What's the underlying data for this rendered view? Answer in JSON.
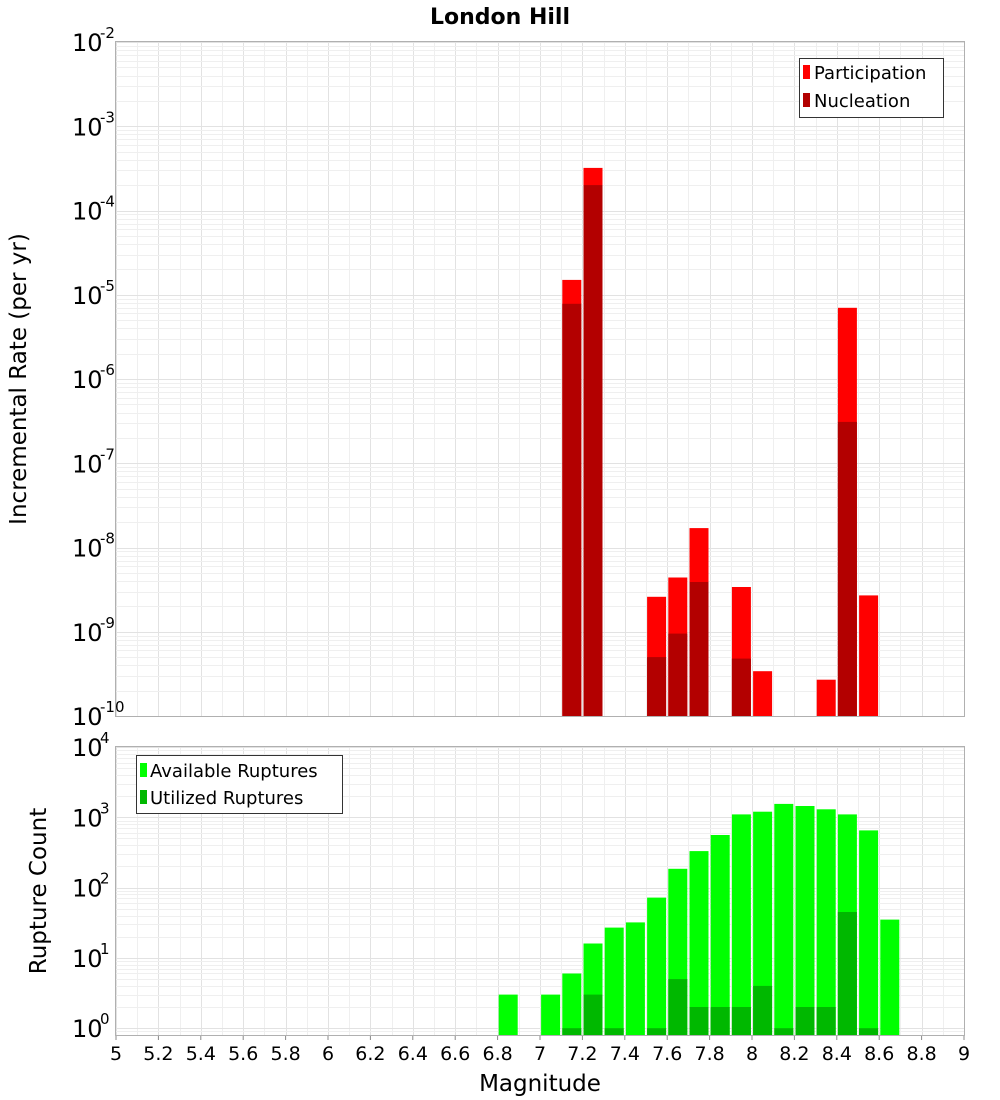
{
  "chart_data": [
    {
      "type": "bar",
      "title": "London Hill",
      "xlabel": "",
      "ylabel": "Incremental Rate (per yr)",
      "y_scale": "log",
      "ylim": [
        1e-10,
        0.01
      ],
      "xlim": [
        5,
        9
      ],
      "y_ticks": [
        {
          "base": "10",
          "exp": "-10"
        },
        {
          "base": "10",
          "exp": "-9"
        },
        {
          "base": "10",
          "exp": "-8"
        },
        {
          "base": "10",
          "exp": "-7"
        },
        {
          "base": "10",
          "exp": "-6"
        },
        {
          "base": "10",
          "exp": "-5"
        },
        {
          "base": "10",
          "exp": "-4"
        },
        {
          "base": "10",
          "exp": "-3"
        },
        {
          "base": "10",
          "exp": "-2"
        }
      ],
      "legend_position": "top-right",
      "series": [
        {
          "name": "Participation",
          "color": "#ff0000",
          "points": [
            {
              "x": 7.15,
              "y": 1.5e-05
            },
            {
              "x": 7.25,
              "y": 0.00032
            },
            {
              "x": 7.55,
              "y": 2.6e-09
            },
            {
              "x": 7.65,
              "y": 4.4e-09
            },
            {
              "x": 7.75,
              "y": 1.7e-08
            },
            {
              "x": 7.95,
              "y": 3.4e-09
            },
            {
              "x": 8.05,
              "y": 3.4e-10
            },
            {
              "x": 8.35,
              "y": 2.7e-10
            },
            {
              "x": 8.45,
              "y": 7e-06
            },
            {
              "x": 8.55,
              "y": 2.7e-09
            }
          ]
        },
        {
          "name": "Nucleation",
          "color": "#b30000",
          "points": [
            {
              "x": 7.15,
              "y": 7.8e-06
            },
            {
              "x": 7.25,
              "y": 0.0002
            },
            {
              "x": 7.55,
              "y": 5e-10
            },
            {
              "x": 7.65,
              "y": 9.5e-10
            },
            {
              "x": 7.75,
              "y": 3.9e-09
            },
            {
              "x": 7.95,
              "y": 4.8e-10
            },
            {
              "x": 8.45,
              "y": 3.1e-07
            }
          ]
        }
      ]
    },
    {
      "type": "bar",
      "title": "",
      "xlabel": "Magnitude",
      "ylabel": "Rupture Count",
      "y_scale": "log",
      "ylim": [
        0.8,
        10000
      ],
      "xlim": [
        5,
        9
      ],
      "y_ticks": [
        {
          "base": "10",
          "exp": "0",
          "value": 1
        },
        {
          "base": "10",
          "exp": "1",
          "value": 10
        },
        {
          "base": "10",
          "exp": "2",
          "value": 100
        },
        {
          "base": "10",
          "exp": "3",
          "value": 1000
        },
        {
          "base": "10",
          "exp": "4",
          "value": 10000
        }
      ],
      "x_ticks": [
        "5",
        "5.2",
        "5.4",
        "5.6",
        "5.8",
        "6",
        "6.2",
        "6.4",
        "6.6",
        "6.8",
        "7",
        "7.2",
        "7.4",
        "7.6",
        "7.8",
        "8",
        "8.2",
        "8.4",
        "8.6",
        "8.8",
        "9"
      ],
      "legend_position": "top-left",
      "series": [
        {
          "name": "Available Ruptures",
          "color": "#00ff00",
          "points": [
            {
              "x": 6.85,
              "y": 3
            },
            {
              "x": 7.05,
              "y": 3
            },
            {
              "x": 7.15,
              "y": 6
            },
            {
              "x": 7.25,
              "y": 16
            },
            {
              "x": 7.35,
              "y": 27
            },
            {
              "x": 7.45,
              "y": 32
            },
            {
              "x": 7.55,
              "y": 72
            },
            {
              "x": 7.65,
              "y": 185
            },
            {
              "x": 7.75,
              "y": 330
            },
            {
              "x": 7.85,
              "y": 560
            },
            {
              "x": 7.95,
              "y": 1100
            },
            {
              "x": 8.05,
              "y": 1200
            },
            {
              "x": 8.15,
              "y": 1550
            },
            {
              "x": 8.25,
              "y": 1450
            },
            {
              "x": 8.35,
              "y": 1300
            },
            {
              "x": 8.45,
              "y": 1100
            },
            {
              "x": 8.55,
              "y": 650
            },
            {
              "x": 8.65,
              "y": 35
            }
          ]
        },
        {
          "name": "Utilized Ruptures",
          "color": "#00b800",
          "points": [
            {
              "x": 7.15,
              "y": 1
            },
            {
              "x": 7.25,
              "y": 3
            },
            {
              "x": 7.35,
              "y": 1
            },
            {
              "x": 7.55,
              "y": 1
            },
            {
              "x": 7.65,
              "y": 5
            },
            {
              "x": 7.75,
              "y": 2
            },
            {
              "x": 7.85,
              "y": 2
            },
            {
              "x": 7.95,
              "y": 2
            },
            {
              "x": 8.05,
              "y": 4
            },
            {
              "x": 8.15,
              "y": 1
            },
            {
              "x": 8.25,
              "y": 2
            },
            {
              "x": 8.35,
              "y": 2
            },
            {
              "x": 8.45,
              "y": 45
            },
            {
              "x": 8.55,
              "y": 1
            }
          ]
        }
      ]
    }
  ]
}
